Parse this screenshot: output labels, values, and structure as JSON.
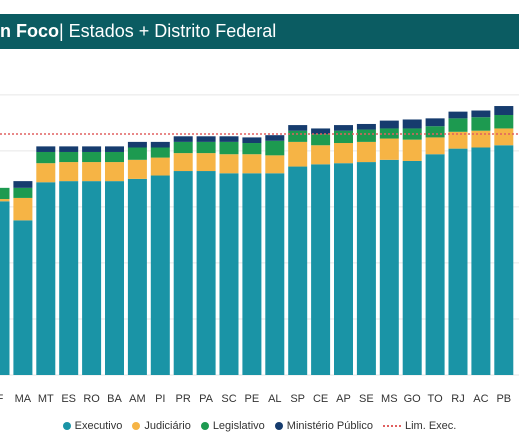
{
  "header": {
    "title_bold": "n Foco",
    "title_rest": " | Estados + Distrito Federal"
  },
  "chart_data": {
    "type": "bar",
    "stacked": true,
    "categories": [
      "F",
      "MA",
      "MT",
      "ES",
      "RO",
      "BA",
      "AM",
      "PI",
      "PR",
      "PA",
      "SC",
      "PE",
      "AL",
      "SP",
      "CE",
      "AP",
      "SE",
      "MS",
      "GO",
      "TO",
      "RJ",
      "AC",
      "PB"
    ],
    "series": [
      {
        "name": "Executivo",
        "color": "#1a94a6",
        "values": [
          155,
          138,
          172,
          173,
          173,
          173,
          175,
          178,
          182,
          182,
          180,
          180,
          180,
          186,
          188,
          189,
          190,
          192,
          191,
          197,
          202,
          203,
          205
        ]
      },
      {
        "name": "Judiciário",
        "color": "#f6b445",
        "values": [
          2,
          20,
          17,
          17,
          17,
          17,
          17,
          16,
          16,
          16,
          17,
          17,
          16,
          22,
          17,
          18,
          18,
          19,
          19,
          15,
          15,
          15,
          15
        ]
      },
      {
        "name": "Legislativo",
        "color": "#1d9a50",
        "values": [
          10,
          9,
          10,
          9,
          9,
          9,
          11,
          9,
          10,
          10,
          11,
          10,
          13,
          10,
          10,
          11,
          11,
          9,
          10,
          10,
          12,
          12,
          12
        ]
      },
      {
        "name": "Ministério Público",
        "color": "#163c6e",
        "values": [
          0,
          6,
          5,
          5,
          5,
          5,
          5,
          5,
          5,
          5,
          5,
          5,
          5,
          5,
          5,
          5,
          5,
          7,
          8,
          7,
          6,
          6,
          8
        ]
      }
    ],
    "reference_line": {
      "name": "Lim. Exec.",
      "value": 215,
      "color": "#e06060"
    },
    "ylim": [
      0,
      290
    ],
    "grid": true,
    "legend_position": "bottom",
    "xlabel": "",
    "ylabel": ""
  }
}
